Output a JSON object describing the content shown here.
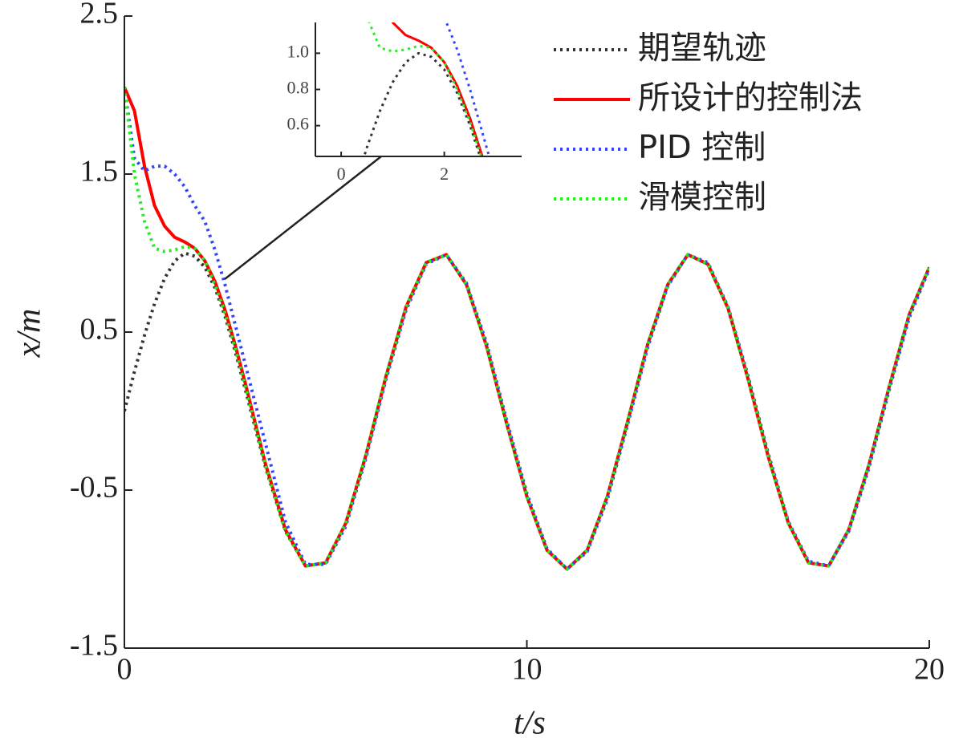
{
  "chart_data": {
    "type": "line",
    "xlabel": "t/s",
    "ylabel": "x/m",
    "xlim": [
      0,
      20
    ],
    "ylim": [
      -1.5,
      2.5
    ],
    "xticks": [
      0,
      10,
      20
    ],
    "yticks": [
      -1.5,
      -0.5,
      0.5,
      1.5,
      2.5
    ],
    "legend": "upper right",
    "x": [
      0,
      0.25,
      0.5,
      0.75,
      1,
      1.25,
      1.5,
      1.75,
      2,
      2.25,
      2.5,
      2.75,
      3,
      3.5,
      4,
      4.5,
      5,
      5.5,
      6,
      6.5,
      7,
      7.5,
      8,
      8.5,
      9,
      9.5,
      10,
      10.5,
      11,
      11.5,
      12,
      12.5,
      13,
      13.5,
      14,
      14.5,
      15,
      15.5,
      16,
      16.5,
      17,
      17.5,
      18,
      18.5,
      19,
      19.5,
      20
    ],
    "series": [
      {
        "name": "期望轨迹",
        "color": "#333333",
        "style": "dotted",
        "values": [
          0,
          0.25,
          0.48,
          0.68,
          0.84,
          0.95,
          1.0,
          0.98,
          0.91,
          0.78,
          0.6,
          0.38,
          0.14,
          -0.35,
          -0.76,
          -0.98,
          -0.96,
          -0.71,
          -0.28,
          0.22,
          0.66,
          0.94,
          0.99,
          0.8,
          0.41,
          -0.08,
          -0.54,
          -0.88,
          -1.0,
          -0.88,
          -0.54,
          -0.07,
          0.42,
          0.8,
          0.99,
          0.93,
          0.65,
          0.2,
          -0.29,
          -0.71,
          -0.96,
          -0.98,
          -0.75,
          -0.34,
          0.15,
          0.61,
          0.91
        ]
      },
      {
        "name": "所设计的控制法",
        "color": "#ff0000",
        "style": "solid",
        "values": [
          2.05,
          1.9,
          1.55,
          1.3,
          1.17,
          1.1,
          1.07,
          1.03,
          0.95,
          0.82,
          0.64,
          0.42,
          0.18,
          -0.33,
          -0.75,
          -0.98,
          -0.96,
          -0.71,
          -0.28,
          0.22,
          0.66,
          0.94,
          0.99,
          0.8,
          0.41,
          -0.08,
          -0.54,
          -0.88,
          -1.0,
          -0.88,
          -0.54,
          -0.07,
          0.42,
          0.8,
          0.99,
          0.93,
          0.65,
          0.2,
          -0.29,
          -0.71,
          -0.96,
          -0.98,
          -0.75,
          -0.34,
          0.15,
          0.61,
          0.91
        ]
      },
      {
        "name": "PID 控制",
        "color": "#3344ff",
        "style": "dotted",
        "values": [
          2.05,
          1.6,
          1.52,
          1.55,
          1.55,
          1.5,
          1.42,
          1.3,
          1.2,
          1.02,
          0.8,
          0.55,
          0.3,
          -0.2,
          -0.7,
          -0.97,
          -0.97,
          -0.73,
          -0.3,
          0.2,
          0.64,
          0.93,
          0.99,
          0.81,
          0.43,
          -0.06,
          -0.52,
          -0.87,
          -1.0,
          -0.89,
          -0.56,
          -0.09,
          0.4,
          0.79,
          0.99,
          0.94,
          0.66,
          0.22,
          -0.27,
          -0.7,
          -0.95,
          -0.98,
          -0.76,
          -0.36,
          0.13,
          0.59,
          0.9
        ]
      },
      {
        "name": "滑模控制",
        "color": "#22ee22",
        "style": "dotted",
        "values": [
          2.05,
          1.5,
          1.2,
          1.03,
          1.01,
          1.02,
          1.04,
          1.03,
          0.95,
          0.8,
          0.62,
          0.4,
          0.16,
          -0.34,
          -0.76,
          -0.98,
          -0.96,
          -0.71,
          -0.28,
          0.22,
          0.66,
          0.94,
          0.99,
          0.8,
          0.41,
          -0.08,
          -0.54,
          -0.88,
          -1.0,
          -0.88,
          -0.54,
          -0.07,
          0.42,
          0.8,
          0.99,
          0.93,
          0.65,
          0.2,
          -0.29,
          -0.71,
          -0.96,
          -0.98,
          -0.75,
          -0.34,
          0.15,
          0.61,
          0.91
        ]
      }
    ],
    "inset": {
      "xlim": [
        -0.5,
        3.5
      ],
      "ylim": [
        0.43,
        1.17
      ],
      "xticks": [
        0,
        2
      ],
      "yticks": [
        0.6,
        0.8,
        {
          "value": 1,
          "label": "1.0"
        }
      ]
    }
  }
}
